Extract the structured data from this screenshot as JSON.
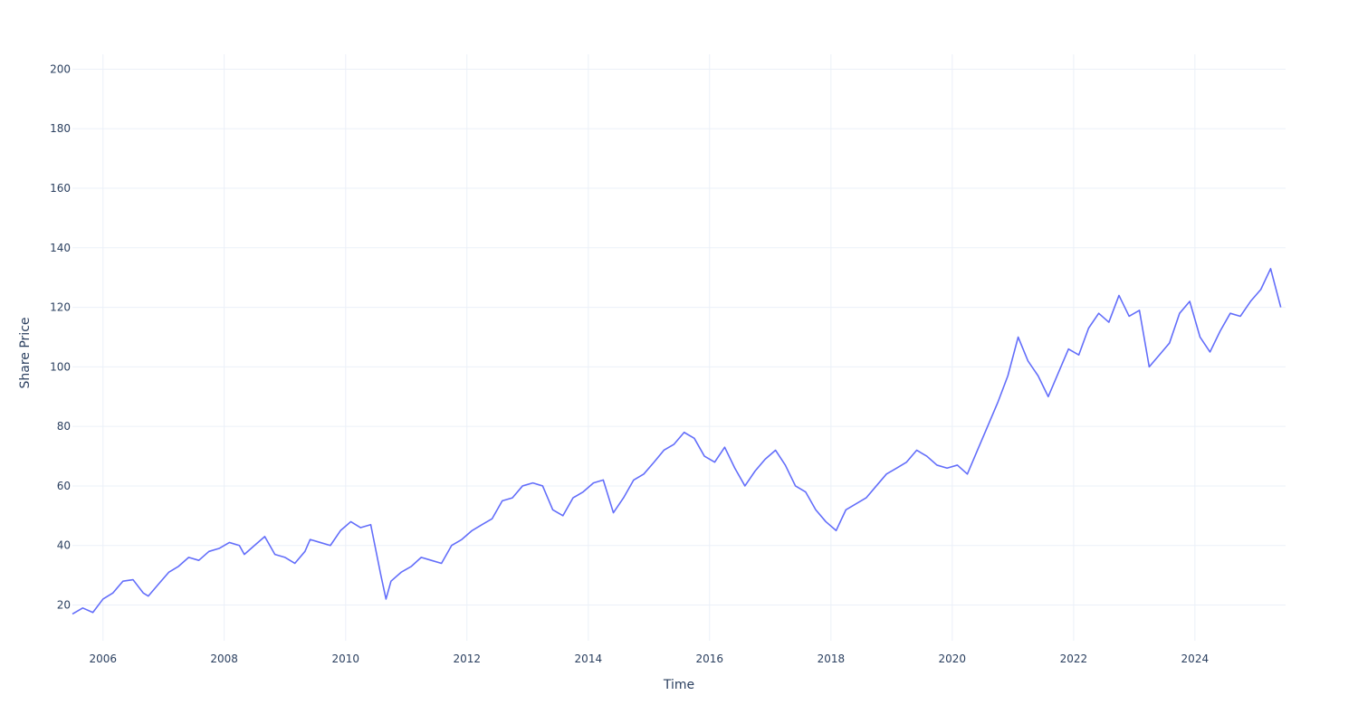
{
  "chart_data": {
    "type": "line",
    "title": "",
    "xlabel": "Time",
    "ylabel": "Share Price",
    "xlim": [
      "2005-07-01",
      "2025-06-30"
    ],
    "ylim": [
      8,
      205
    ],
    "x_ticks": [
      "2006",
      "2008",
      "2010",
      "2012",
      "2014",
      "2016",
      "2018",
      "2020",
      "2022",
      "2024"
    ],
    "y_ticks": [
      "20",
      "40",
      "60",
      "80",
      "100",
      "120",
      "140",
      "160",
      "180",
      "200"
    ],
    "grid": true,
    "legend": "none",
    "series": [
      {
        "color": "#636efa",
        "points": [
          [
            "2005-07-01",
            17
          ],
          [
            "2005-09-01",
            19
          ],
          [
            "2005-11-01",
            17.5
          ],
          [
            "2006-01-01",
            22
          ],
          [
            "2006-03-01",
            24
          ],
          [
            "2006-05-01",
            28
          ],
          [
            "2006-07-01",
            28.5
          ],
          [
            "2006-09-01",
            24
          ],
          [
            "2006-10-01",
            23
          ],
          [
            "2006-12-01",
            27
          ],
          [
            "2007-02-01",
            31
          ],
          [
            "2007-04-01",
            33
          ],
          [
            "2007-06-01",
            36
          ],
          [
            "2007-08-01",
            35
          ],
          [
            "2007-10-01",
            38
          ],
          [
            "2007-12-01",
            39
          ],
          [
            "2008-02-01",
            41
          ],
          [
            "2008-04-01",
            40
          ],
          [
            "2008-05-01",
            37
          ],
          [
            "2008-07-01",
            40
          ],
          [
            "2008-09-01",
            43
          ],
          [
            "2008-11-01",
            37
          ],
          [
            "2009-01-01",
            36
          ],
          [
            "2009-03-01",
            34
          ],
          [
            "2009-05-01",
            38
          ],
          [
            "2009-06-01",
            42
          ],
          [
            "2009-08-01",
            41
          ],
          [
            "2009-10-01",
            40
          ],
          [
            "2009-12-01",
            45
          ],
          [
            "2010-02-01",
            48
          ],
          [
            "2010-04-01",
            46
          ],
          [
            "2010-06-01",
            47
          ],
          [
            "2010-08-01",
            30
          ],
          [
            "2010-09-01",
            22
          ],
          [
            "2010-10-01",
            28
          ],
          [
            "2010-12-01",
            31
          ],
          [
            "2011-02-01",
            33
          ],
          [
            "2011-04-01",
            36
          ],
          [
            "2011-06-01",
            35
          ],
          [
            "2011-08-01",
            34
          ],
          [
            "2011-10-01",
            40
          ],
          [
            "2011-12-01",
            42
          ],
          [
            "2012-02-01",
            45
          ],
          [
            "2012-04-01",
            47
          ],
          [
            "2012-06-01",
            49
          ],
          [
            "2012-08-01",
            55
          ],
          [
            "2012-10-01",
            56
          ],
          [
            "2012-12-01",
            60
          ],
          [
            "2013-02-01",
            61
          ],
          [
            "2013-04-01",
            60
          ],
          [
            "2013-06-01",
            52
          ],
          [
            "2013-08-01",
            50
          ],
          [
            "2013-10-01",
            56
          ],
          [
            "2013-12-01",
            58
          ],
          [
            "2014-02-01",
            61
          ],
          [
            "2014-04-01",
            62
          ],
          [
            "2014-06-01",
            51
          ],
          [
            "2014-08-01",
            56
          ],
          [
            "2014-10-01",
            62
          ],
          [
            "2014-12-01",
            64
          ],
          [
            "2015-02-01",
            68
          ],
          [
            "2015-04-01",
            72
          ],
          [
            "2015-06-01",
            74
          ],
          [
            "2015-08-01",
            78
          ],
          [
            "2015-10-01",
            76
          ],
          [
            "2015-12-01",
            70
          ],
          [
            "2016-02-01",
            68
          ],
          [
            "2016-04-01",
            73
          ],
          [
            "2016-06-01",
            66
          ],
          [
            "2016-08-01",
            60
          ],
          [
            "2016-10-01",
            65
          ],
          [
            "2016-12-01",
            69
          ],
          [
            "2017-02-01",
            72
          ],
          [
            "2017-04-01",
            67
          ],
          [
            "2017-06-01",
            60
          ],
          [
            "2017-08-01",
            58
          ],
          [
            "2017-10-01",
            52
          ],
          [
            "2017-12-01",
            48
          ],
          [
            "2018-02-01",
            45
          ],
          [
            "2018-04-01",
            52
          ],
          [
            "2018-06-01",
            54
          ],
          [
            "2018-08-01",
            56
          ],
          [
            "2018-10-01",
            60
          ],
          [
            "2018-12-01",
            64
          ],
          [
            "2019-02-01",
            66
          ],
          [
            "2019-04-01",
            68
          ],
          [
            "2019-06-01",
            72
          ],
          [
            "2019-08-01",
            70
          ],
          [
            "2019-10-01",
            67
          ],
          [
            "2019-12-01",
            66
          ],
          [
            "2020-02-01",
            67
          ],
          [
            "2020-04-01",
            64
          ],
          [
            "2020-06-01",
            72
          ],
          [
            "2020-08-01",
            80
          ],
          [
            "2020-10-01",
            88
          ],
          [
            "2020-12-01",
            97
          ],
          [
            "2021-02-01",
            110
          ],
          [
            "2021-04-01",
            102
          ],
          [
            "2021-06-01",
            97
          ],
          [
            "2021-08-01",
            90
          ],
          [
            "2021-10-01",
            98
          ],
          [
            "2021-12-01",
            106
          ],
          [
            "2022-02-01",
            104
          ],
          [
            "2022-04-01",
            113
          ],
          [
            "2022-06-01",
            118
          ],
          [
            "2022-08-01",
            115
          ],
          [
            "2022-10-01",
            124
          ],
          [
            "2022-12-01",
            117
          ],
          [
            "2023-02-01",
            119
          ],
          [
            "2023-04-01",
            100
          ],
          [
            "2023-06-01",
            104
          ],
          [
            "2023-08-01",
            108
          ],
          [
            "2023-10-01",
            118
          ],
          [
            "2023-12-01",
            122
          ],
          [
            "2024-02-01",
            110
          ],
          [
            "2024-04-01",
            105
          ],
          [
            "2024-06-01",
            112
          ],
          [
            "2024-08-01",
            118
          ],
          [
            "2024-10-01",
            117
          ],
          [
            "2024-12-01",
            122
          ],
          [
            "2025-02-01",
            126
          ],
          [
            "2025-04-01",
            133
          ],
          [
            "2025-06-01",
            120
          ]
        ]
      }
    ]
  }
}
